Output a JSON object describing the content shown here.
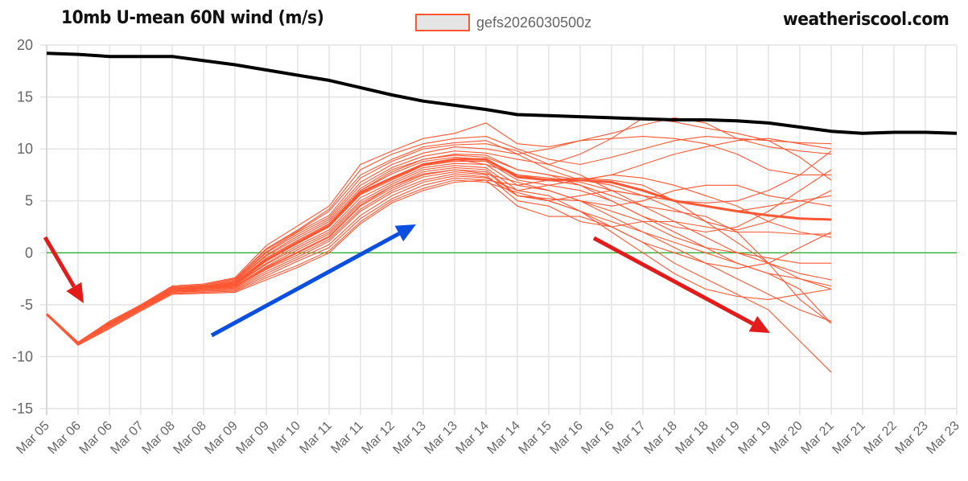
{
  "header": {
    "title": "10mb U-mean 60N wind (m/s)",
    "site": "weatheriscool.com"
  },
  "chart_data": {
    "type": "line",
    "title": "10mb U-mean 60N wind (m/s)",
    "xlabel": "",
    "ylabel": "",
    "ylim": [
      -15,
      20
    ],
    "yticks": [
      20,
      15,
      10,
      5,
      0,
      -5,
      -10,
      -15
    ],
    "grid": true,
    "legend": {
      "placement": "top-center",
      "entries": [
        "gefs2026030500z"
      ]
    },
    "categories": [
      "Mar 05",
      "Mar 06",
      "Mar 06",
      "Mar 07",
      "Mar 08",
      "Mar 08",
      "Mar 09",
      "Mar 09",
      "Mar 10",
      "Mar 11",
      "Mar 11",
      "Mar 12",
      "Mar 13",
      "Mar 13",
      "Mar 14",
      "Mar 14",
      "Mar 15",
      "Mar 16",
      "Mar 16",
      "Mar 17",
      "Mar 18",
      "Mar 18",
      "Mar 19",
      "Mar 19",
      "Mar 20",
      "Mar 21",
      "Mar 21",
      "Mar 22",
      "Mar 23",
      "Mar 23"
    ],
    "colors": {
      "ensemble": "#ff5733",
      "climatology": "#000000",
      "zero_line": "#22aa22",
      "grid": "#e3e3e3",
      "annotation_red": "#e31b1b",
      "annotation_blue": "#0a4fe0"
    },
    "climatology": [
      19.2,
      19.1,
      18.9,
      18.9,
      18.9,
      18.5,
      18.1,
      17.6,
      17.1,
      16.6,
      15.9,
      15.2,
      14.6,
      14.2,
      13.8,
      13.3,
      13.2,
      13.1,
      13.0,
      12.9,
      12.8,
      12.8,
      12.7,
      12.5,
      12.1,
      11.7,
      11.5,
      11.6,
      11.6,
      11.5
    ],
    "ensemble_mean": [
      -5.9,
      -8.7,
      -6.8,
      -5.2,
      -3.5,
      -3.3,
      -3.0,
      -0.7,
      1.0,
      2.6,
      5.8,
      7.2,
      8.5,
      9.0,
      9.0,
      7.3,
      7.0,
      7.0,
      6.8,
      6.0,
      5.0,
      4.5,
      4.0,
      3.6,
      3.3,
      3.2
    ],
    "ensemble_members": [
      [
        -5.9,
        -8.6,
        -6.6,
        -5.0,
        -3.2,
        -3.0,
        -2.4,
        0.7,
        2.6,
        4.5,
        8.5,
        9.8,
        11.0,
        11.5,
        12.5,
        10.5,
        10.2,
        10.8,
        11.5,
        12.3,
        13.0,
        12.5,
        11.0,
        10.8,
        10.6,
        10.5
      ],
      [
        -5.9,
        -8.7,
        -6.7,
        -5.1,
        -3.3,
        -3.1,
        -2.5,
        0.4,
        2.2,
        4.2,
        8.0,
        9.5,
        10.5,
        11.0,
        11.2,
        10.0,
        9.0,
        8.5,
        9.2,
        10.0,
        10.8,
        11.2,
        11.0,
        10.2,
        9.8,
        9.5
      ],
      [
        -6.0,
        -8.7,
        -6.8,
        -5.1,
        -3.4,
        -3.2,
        -2.6,
        0.1,
        2.0,
        3.6,
        7.2,
        8.8,
        10.0,
        10.4,
        10.5,
        9.8,
        8.5,
        9.5,
        11.0,
        13.0,
        12.6,
        12.0,
        11.5,
        10.8,
        9.2,
        7.0
      ],
      [
        -5.9,
        -8.8,
        -6.8,
        -5.2,
        -3.5,
        -3.3,
        -2.7,
        0.0,
        1.8,
        3.4,
        6.8,
        8.5,
        9.6,
        10.2,
        10.0,
        9.5,
        8.0,
        7.0,
        6.5,
        5.5,
        5.0,
        4.8,
        5.0,
        6.0,
        7.5,
        9.8
      ],
      [
        -6.0,
        -8.7,
        -6.9,
        -5.2,
        -3.4,
        -3.2,
        -2.8,
        -0.2,
        1.6,
        3.2,
        6.5,
        8.2,
        9.3,
        9.8,
        9.6,
        9.0,
        8.5,
        7.5,
        6.0,
        5.5,
        4.2,
        3.0,
        2.2,
        3.0,
        4.5,
        6.0
      ],
      [
        -5.9,
        -8.7,
        -6.8,
        -5.2,
        -3.5,
        -3.3,
        -2.8,
        -0.3,
        1.4,
        3.0,
        6.2,
        8.0,
        9.0,
        9.5,
        9.4,
        8.0,
        7.5,
        7.0,
        7.5,
        8.5,
        9.5,
        10.2,
        10.8,
        11.0,
        10.5,
        10.0
      ],
      [
        -6.0,
        -8.8,
        -6.9,
        -5.3,
        -3.5,
        -3.3,
        -2.9,
        -0.5,
        1.2,
        2.8,
        6.0,
        7.6,
        8.8,
        9.2,
        9.0,
        7.5,
        7.2,
        6.8,
        6.0,
        4.5,
        3.0,
        1.5,
        0.0,
        -1.0,
        -2.0,
        -2.6
      ],
      [
        -5.9,
        -8.7,
        -6.8,
        -5.2,
        -3.5,
        -3.3,
        -3.0,
        -0.8,
        0.9,
        2.5,
        5.6,
        7.0,
        8.4,
        8.8,
        8.8,
        7.0,
        6.5,
        6.0,
        5.0,
        3.5,
        2.0,
        0.5,
        -1.0,
        -2.0,
        -2.5,
        -3.5
      ],
      [
        -6.0,
        -8.7,
        -6.9,
        -5.3,
        -3.6,
        -3.4,
        -3.1,
        -1.0,
        0.7,
        2.2,
        5.3,
        6.8,
        8.2,
        8.6,
        8.5,
        6.5,
        6.0,
        5.0,
        3.5,
        2.0,
        0.5,
        -1.0,
        -2.5,
        -4.0,
        -5.5,
        -6.6
      ],
      [
        -5.9,
        -8.8,
        -6.9,
        -5.3,
        -3.6,
        -3.4,
        -3.1,
        -1.1,
        0.5,
        2.0,
        5.0,
        6.6,
        8.0,
        8.4,
        8.2,
        6.0,
        5.5,
        4.0,
        2.5,
        1.0,
        -1.0,
        -2.5,
        -4.0,
        -5.5,
        -8.5,
        -11.5
      ],
      [
        -6.0,
        -8.7,
        -6.9,
        -5.3,
        -3.6,
        -3.4,
        -3.2,
        -1.3,
        0.3,
        1.8,
        4.8,
        6.4,
        7.8,
        8.2,
        8.0,
        5.5,
        5.0,
        4.0,
        3.0,
        2.0,
        1.0,
        0.0,
        -1.0,
        -2.0,
        -3.5,
        -6.8
      ],
      [
        -5.9,
        -8.7,
        -6.9,
        -5.3,
        -3.7,
        -3.5,
        -3.3,
        -1.5,
        0.0,
        1.5,
        4.5,
        6.2,
        7.5,
        8.0,
        7.8,
        5.5,
        5.2,
        5.0,
        4.0,
        3.0,
        1.5,
        0.5,
        0.0,
        -0.5,
        -1.0,
        -1.0
      ],
      [
        -6.0,
        -8.8,
        -7.0,
        -5.4,
        -3.7,
        -3.5,
        -3.3,
        -1.6,
        -0.2,
        1.3,
        4.2,
        6.0,
        7.3,
        7.8,
        7.5,
        5.0,
        4.5,
        3.0,
        2.5,
        3.0,
        3.0,
        2.5,
        2.0,
        2.0,
        1.8,
        1.8
      ],
      [
        -5.9,
        -8.7,
        -7.0,
        -5.4,
        -3.7,
        -3.6,
        -3.4,
        -1.8,
        -0.4,
        1.1,
        4.0,
        5.8,
        7.0,
        7.6,
        7.3,
        5.5,
        5.0,
        5.5,
        6.0,
        5.5,
        5.0,
        4.5,
        4.0,
        4.5,
        5.0,
        5.5
      ],
      [
        -6.0,
        -8.8,
        -7.0,
        -5.4,
        -3.8,
        -3.6,
        -3.5,
        -2.0,
        -0.6,
        0.8,
        3.6,
        5.5,
        6.8,
        7.4,
        7.2,
        6.0,
        6.5,
        7.0,
        7.5,
        7.2,
        6.5,
        5.5,
        4.5,
        3.0,
        2.0,
        1.5
      ],
      [
        -5.9,
        -8.8,
        -7.1,
        -5.5,
        -3.8,
        -3.7,
        -3.6,
        -2.2,
        -0.8,
        0.5,
        3.3,
        5.2,
        6.5,
        7.2,
        7.0,
        4.5,
        3.5,
        3.5,
        2.5,
        1.0,
        0.0,
        -1.0,
        -1.5,
        -1.0,
        0.5,
        2.0
      ],
      [
        -6.0,
        -8.9,
        -7.2,
        -5.5,
        -3.9,
        -3.8,
        -3.7,
        -2.4,
        -1.2,
        0.2,
        3.0,
        5.0,
        6.2,
        7.0,
        6.8,
        5.8,
        5.0,
        4.0,
        2.0,
        0.0,
        -2.0,
        -3.5,
        -4.2,
        -4.5,
        -4.0,
        -3.5
      ],
      [
        -5.9,
        -8.9,
        -7.3,
        -5.6,
        -4.0,
        -3.9,
        -3.8,
        -2.6,
        -1.4,
        0.0,
        2.8,
        4.8,
        6.0,
        6.8,
        7.0,
        6.5,
        7.0,
        7.2,
        7.0,
        6.5,
        5.0,
        3.0,
        1.0,
        -1.0,
        -2.5,
        -3.2
      ],
      [
        -5.9,
        -8.7,
        -6.7,
        -5.1,
        -3.3,
        -3.1,
        -2.5,
        0.3,
        2.1,
        4.0,
        7.5,
        9.0,
        10.2,
        10.6,
        10.8,
        9.5,
        10.0,
        10.8,
        11.0,
        11.2,
        11.0,
        10.5,
        9.5,
        8.0,
        7.5,
        7.5
      ],
      [
        -6.0,
        -8.7,
        -6.8,
        -5.2,
        -3.5,
        -3.3,
        -3.0,
        -0.7,
        1.0,
        2.6,
        5.7,
        7.2,
        8.5,
        9.0,
        8.5,
        7.5,
        7.0,
        6.5,
        5.5,
        4.5,
        4.0,
        3.5,
        2.0,
        -1.0,
        -4.5,
        -6.8
      ],
      [
        -5.9,
        -8.7,
        -6.8,
        -5.2,
        -3.5,
        -3.3,
        -2.9,
        -0.5,
        1.2,
        2.8,
        6.0,
        7.8,
        9.0,
        9.4,
        9.2,
        8.0,
        7.5,
        6.5,
        5.0,
        3.5,
        2.5,
        2.0,
        2.5,
        4.0,
        6.0,
        8.0
      ],
      [
        -6.0,
        -8.8,
        -6.9,
        -5.3,
        -3.7,
        -3.5,
        -3.2,
        -1.4,
        0.1,
        1.6,
        4.6,
        6.4,
        7.6,
        8.0,
        7.6,
        6.8,
        6.0,
        5.0,
        4.5,
        5.0,
        6.0,
        6.5,
        6.5,
        5.5,
        5.0,
        4.5
      ]
    ],
    "annotations": [
      {
        "type": "arrow",
        "color": "red",
        "direction": "down",
        "near": "Mar 05"
      },
      {
        "type": "arrow",
        "color": "blue",
        "direction": "up-right",
        "from": "Mar 08",
        "to": "Mar 13"
      },
      {
        "type": "arrow",
        "color": "red",
        "direction": "down-right",
        "from": "Mar 16",
        "to": "Mar 19"
      }
    ]
  }
}
